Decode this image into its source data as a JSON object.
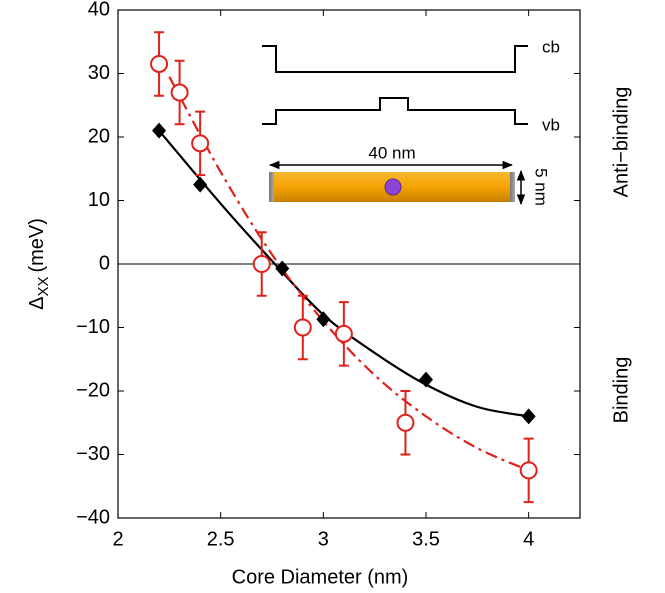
{
  "chart_data": {
    "type": "scatter",
    "xlabel": "Core Diameter (nm)",
    "ylabel": {
      "symbol": "Δ",
      "subscript": "XX",
      "unit": "(meV)"
    },
    "side_labels": {
      "upper": "Anti−binding",
      "lower": "Binding"
    },
    "xlim": [
      2,
      4.25
    ],
    "ylim": [
      -40,
      40
    ],
    "xticks": [
      2,
      2.5,
      3,
      3.5,
      4
    ],
    "yticks": [
      {
        "value": -40,
        "label": "−40"
      },
      {
        "value": -30,
        "label": "−30"
      },
      {
        "value": -20,
        "label": "−20"
      },
      {
        "value": -10,
        "label": "−10"
      },
      0,
      10,
      20,
      30,
      40
    ],
    "zero_line": true,
    "series": [
      {
        "mode": "fit",
        "dash": "solid",
        "color": "#000000",
        "x": [
          2.2,
          2.5,
          2.75,
          3.0,
          3.25,
          3.5,
          3.75,
          4.0
        ],
        "values": [
          21,
          9.5,
          0.5,
          -8,
          -14,
          -19,
          -22.5,
          -24
        ]
      },
      {
        "mode": "fit",
        "dash": "dashdot",
        "color": "#e0201b",
        "x": [
          2.25,
          2.5,
          2.75,
          3.0,
          3.25,
          3.5,
          3.75,
          4.0
        ],
        "values": [
          29.5,
          14.5,
          1.5,
          -9,
          -17.5,
          -24,
          -29,
          -32.5
        ]
      },
      {
        "mode": "markers",
        "marker": "diamond",
        "color": "#000000",
        "x": [
          2.2,
          2.4,
          2.8,
          3.0,
          3.5,
          4.0
        ],
        "values": [
          21,
          12.5,
          -0.7,
          -8.7,
          -18.2,
          -24
        ]
      },
      {
        "mode": "markers",
        "marker": "circle",
        "color": "#e0201b",
        "x": [
          2.2,
          2.3,
          2.4,
          2.7,
          2.9,
          3.1,
          3.4,
          4.0
        ],
        "values": [
          31.5,
          27,
          19,
          0,
          -10,
          -11,
          -25,
          -32.5
        ],
        "errors": [
          5,
          5,
          5,
          5,
          5,
          5,
          5,
          5
        ]
      }
    ],
    "inset": {
      "cb": "cb",
      "vb": "vb",
      "length": "40 nm",
      "width": "5 nm"
    }
  }
}
